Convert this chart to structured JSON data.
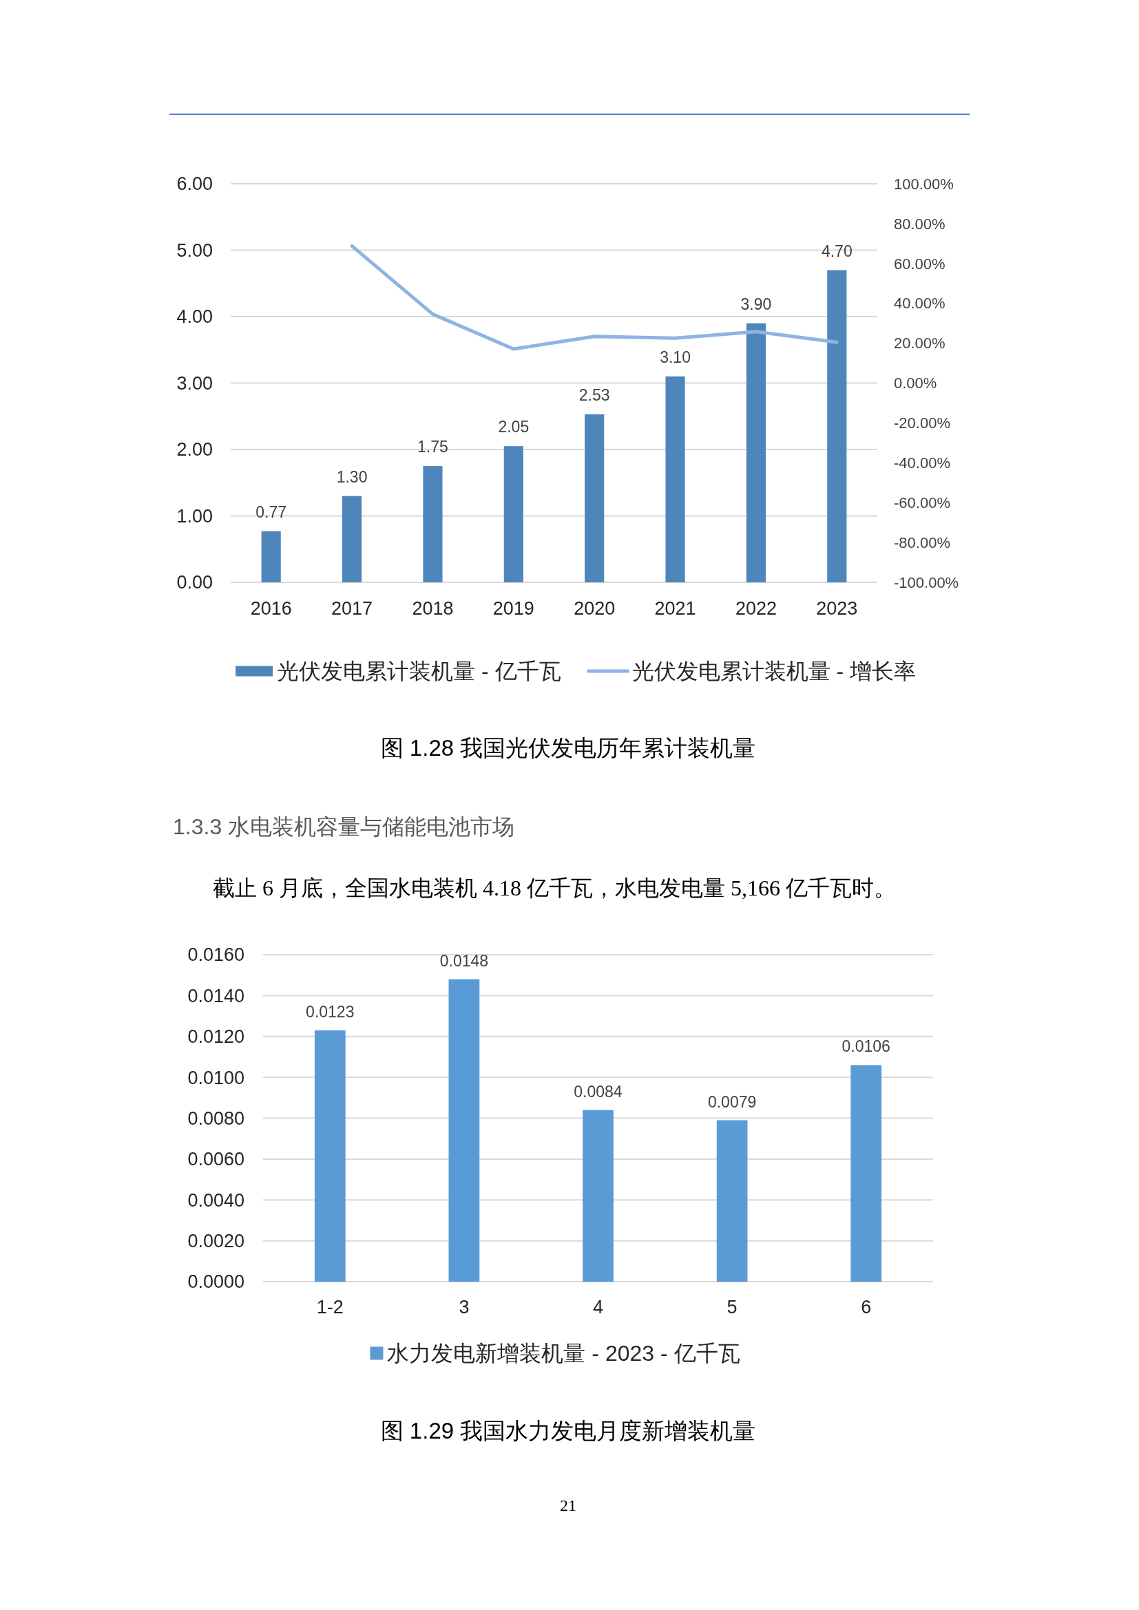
{
  "chart_data": [
    {
      "type": "bar",
      "title": "图 1.28 我国光伏发电历年累计装机量",
      "categories": [
        "2016",
        "2017",
        "2018",
        "2019",
        "2020",
        "2021",
        "2022",
        "2023"
      ],
      "series": [
        {
          "name": "光伏发电累计装机量 - 亿千瓦",
          "color": "#4e86bc",
          "values": [
            0.77,
            1.3,
            1.75,
            2.05,
            2.53,
            3.1,
            3.9,
            4.7
          ],
          "value_labels": [
            "0.77",
            "1.30",
            "1.75",
            "2.05",
            "2.53",
            "3.10",
            "3.90",
            "4.70"
          ]
        },
        {
          "name": "光伏发电累计装机量 - 增长率",
          "type": "line",
          "axis": "y2",
          "color": "#8eb4e3",
          "values": [
            null,
            68.8,
            34.6,
            17.1,
            23.4,
            22.5,
            25.8,
            20.5
          ]
        }
      ],
      "ylim": [
        0,
        6
      ],
      "yticks": [
        {
          "value": 0,
          "label": "0.00"
        },
        {
          "value": 1,
          "label": "1.00"
        },
        {
          "value": 2,
          "label": "2.00"
        },
        {
          "value": 3,
          "label": "3.00"
        },
        {
          "value": 4,
          "label": "4.00"
        },
        {
          "value": 5,
          "label": "5.00"
        },
        {
          "value": 6,
          "label": "6.00"
        }
      ],
      "y2lim": [
        -100,
        100
      ],
      "y2ticks": [
        {
          "value": -100,
          "label": "-100.00%"
        },
        {
          "value": -80,
          "label": "-80.00%"
        },
        {
          "value": -60,
          "label": "-60.00%"
        },
        {
          "value": -40,
          "label": "-40.00%"
        },
        {
          "value": -20,
          "label": "-20.00%"
        },
        {
          "value": 0,
          "label": "0.00%"
        },
        {
          "value": 20,
          "label": "20.00%"
        },
        {
          "value": 40,
          "label": "40.00%"
        },
        {
          "value": 60,
          "label": "60.00%"
        },
        {
          "value": 80,
          "label": "80.00%"
        },
        {
          "value": 100,
          "label": "100.00%"
        }
      ],
      "grid": "y",
      "legend": "bottom"
    },
    {
      "type": "bar",
      "title": "图 1.29 我国水力发电月度新增装机量",
      "annotations": [
        "1.3.3 水电装机容量与储能电池市场",
        "截止 6 月底，全国水电装机 4.18 亿千瓦，水电发电量 5,166 亿千瓦时。",
        "21"
      ],
      "categories": [
        "1-2",
        "3",
        "4",
        "5",
        "6"
      ],
      "series": [
        {
          "name": "水力发电新增装机量 - 2023 - 亿千瓦",
          "color": "#5b9bd5",
          "values": [
            0.0123,
            0.0148,
            0.0084,
            0.0079,
            0.0106
          ]
        }
      ],
      "ylim": [
        0,
        0.016
      ],
      "yticks": [
        {
          "value": 0,
          "label": "0.0000"
        },
        {
          "value": 0.002,
          "label": "0.0020"
        },
        {
          "value": 0.004,
          "label": "0.0040"
        },
        {
          "value": 0.006,
          "label": "0.0060"
        },
        {
          "value": 0.008,
          "label": "0.0080"
        },
        {
          "value": 0.01,
          "label": "0.0100"
        },
        {
          "value": 0.012,
          "label": "0.0120"
        },
        {
          "value": 0.014,
          "label": "0.0140"
        },
        {
          "value": 0.016,
          "label": "0.0160"
        }
      ],
      "grid": "y",
      "legend": "bottom",
      "data_labels": true
    }
  ]
}
